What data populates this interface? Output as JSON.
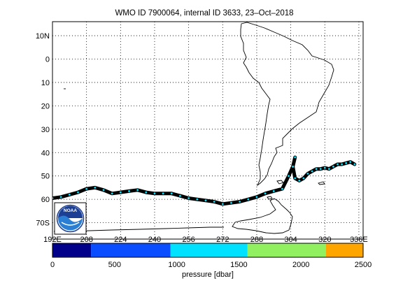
{
  "title": "WMO ID 7900064, internal ID 3633, 23–Oct–2018",
  "map": {
    "lat_ticks": [
      "10N",
      "0",
      "10",
      "20",
      "30",
      "40",
      "50",
      "60",
      "70S"
    ],
    "lon_ticks": [
      "192E",
      "208",
      "224",
      "240",
      "256",
      "272",
      "288",
      "304",
      "320",
      "336E"
    ],
    "grid": "dotted",
    "lat_range": [
      -77,
      16
    ],
    "lon_range": [
      192,
      338
    ],
    "logo_label": "NOAA",
    "track_color": "#000000",
    "profile_dot_color": "#00e5ff"
  },
  "chart_data": {
    "type": "scatter",
    "title": "WMO ID 7900064, internal ID 3633, 23–Oct–2018",
    "xlabel": "",
    "ylabel": "",
    "track": {
      "x": [
        192,
        196,
        200,
        204,
        208,
        212,
        216,
        220,
        224,
        228,
        232,
        236,
        240,
        244,
        248,
        252,
        256,
        260,
        264,
        268,
        272,
        276,
        280,
        284,
        288,
        292,
        296,
        300,
        303,
        305,
        306,
        305,
        306,
        308,
        310,
        312,
        314,
        316,
        318,
        320,
        322,
        324,
        326,
        328,
        330,
        332,
        334
      ],
      "y": [
        -59.5,
        -59,
        -58,
        -57,
        -55.5,
        -55,
        -56,
        -57.5,
        -57,
        -56.5,
        -56,
        -57,
        -57.5,
        -57.5,
        -57.5,
        -58.5,
        -59.5,
        -60,
        -60.5,
        -61,
        -62,
        -61.5,
        -61,
        -60,
        -59,
        -57.5,
        -56.5,
        -55.5,
        -50,
        -46,
        -42,
        -46,
        -51,
        -52,
        -51,
        -49,
        -48,
        -47,
        -47,
        -46.5,
        -47,
        -46,
        -45,
        -45,
        -44.5,
        -44,
        -45
      ]
    }
  },
  "colorbar": {
    "ticks": [
      "0",
      "500",
      "1000",
      "1500",
      "2000",
      "2500"
    ],
    "colors": [
      "#00008b",
      "#0a4cff",
      "#00e0ff",
      "#90f060",
      "#ffa500"
    ],
    "range": [
      0,
      2500
    ],
    "label": "pressure [dbar]"
  }
}
